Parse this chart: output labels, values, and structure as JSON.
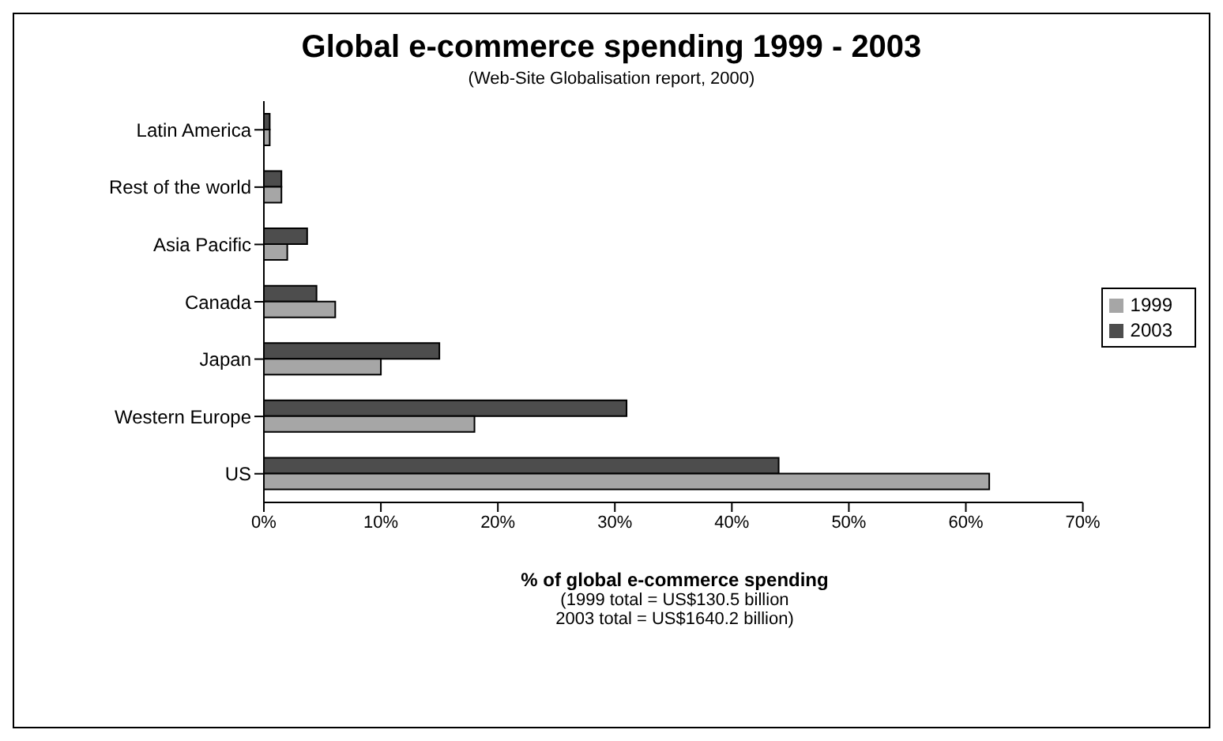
{
  "chart_data": {
    "type": "bar",
    "orientation": "horizontal",
    "title": "Global e-commerce spending 1999 - 2003",
    "subtitle": "(Web-Site Globalisation report, 2000)",
    "xlabel": "% of global e-commerce spending",
    "annotations": [
      "(1999 total = US$130.5 billion",
      "2003 total = US$1640.2 billion)"
    ],
    "categories": [
      "Latin America",
      "Rest of the world",
      "Asia Pacific",
      "Canada",
      "Japan",
      "Western Europe",
      "US"
    ],
    "series": [
      {
        "name": "2003",
        "color": "#4d4d4d",
        "values": [
          0.5,
          1.5,
          3.7,
          4.5,
          15,
          31,
          44
        ]
      },
      {
        "name": "1999",
        "color": "#a6a6a6",
        "values": [
          0.5,
          1.5,
          2,
          6.1,
          10,
          18,
          62
        ]
      }
    ],
    "xlim": [
      0,
      70
    ],
    "xticks": [
      {
        "value": 0,
        "label": "0%"
      },
      {
        "value": 10,
        "label": "10%"
      },
      {
        "value": 20,
        "label": "20%"
      },
      {
        "value": 30,
        "label": "30%"
      },
      {
        "value": 40,
        "label": "40%"
      },
      {
        "value": 50,
        "label": "50%"
      },
      {
        "value": 60,
        "label": "60%"
      },
      {
        "value": 70,
        "label": "70%"
      }
    ],
    "grid": false,
    "legend": "right"
  }
}
